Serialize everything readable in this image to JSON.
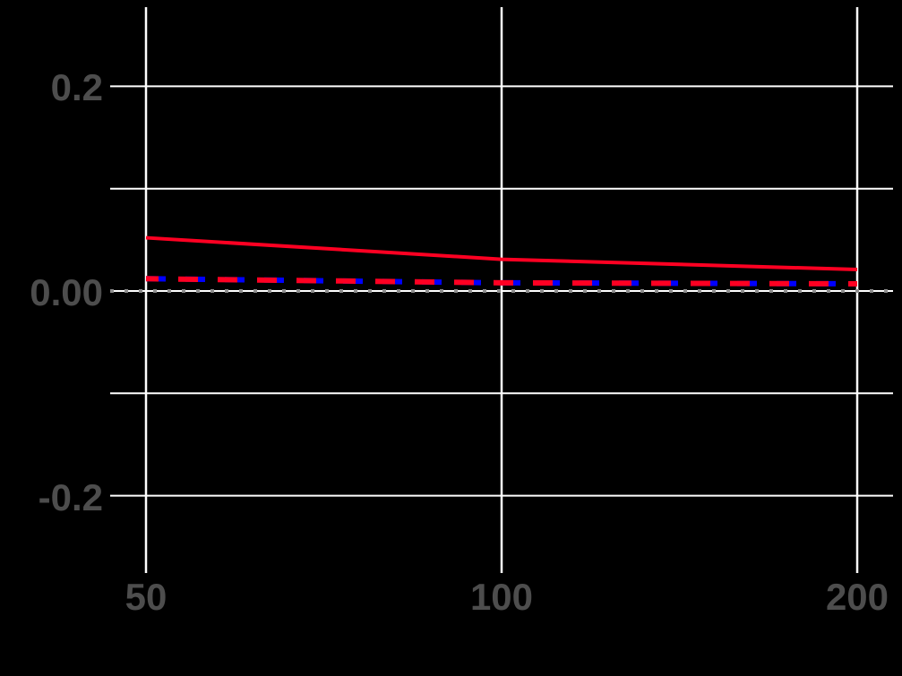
{
  "chart_data": {
    "type": "line",
    "title": "",
    "xlabel": "",
    "ylabel": "",
    "x_scale": "log",
    "x": [
      50,
      100,
      200
    ],
    "x_ticks": [
      "50",
      "100",
      "200"
    ],
    "y_ticks": [
      "0.2",
      "0.00",
      "-0.2"
    ],
    "ylim": [
      -0.27,
      0.275
    ],
    "grid": true,
    "legend": "none",
    "series": [
      {
        "name": "series-solid-red",
        "style": "solid",
        "color": "#ff0022",
        "values": [
          0.052,
          0.031,
          0.021
        ]
      },
      {
        "name": "series-dashed-blue",
        "style": "dashed",
        "color": "#0000ff",
        "values": [
          0.012,
          0.008,
          0.007
        ]
      },
      {
        "name": "series-dashed-red",
        "style": "dashed",
        "color": "#ff0022",
        "values": [
          0.012,
          0.008,
          0.007
        ]
      },
      {
        "name": "reference-zero",
        "style": "dotted",
        "color": "#8c8c8c",
        "values": [
          0,
          0,
          0
        ]
      }
    ]
  },
  "colors": {
    "background": "#000000",
    "grid": "#ffffff",
    "tick_text": "#4d4d4d"
  }
}
